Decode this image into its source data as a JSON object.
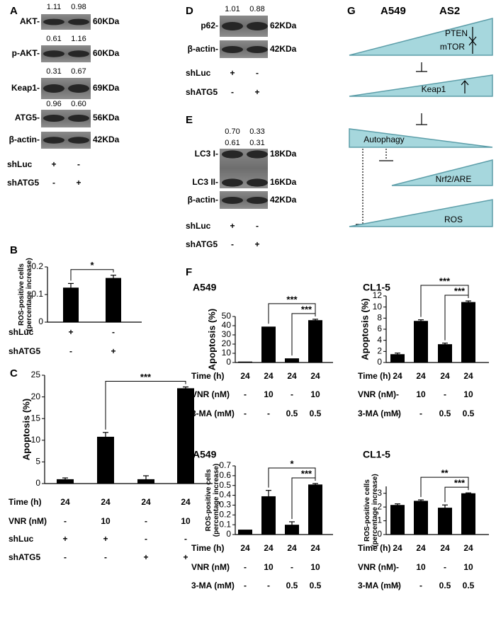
{
  "panels": {
    "A": {
      "label": "A",
      "blots": [
        {
          "bands": [
            {
              "label": "AKT-",
              "size": "60KDa"
            }
          ],
          "quant": [
            [
              "1.11",
              "0.98"
            ]
          ]
        },
        {
          "bands": [
            {
              "label": "p-AKT-",
              "size": "60KDa"
            }
          ],
          "quant": [
            [
              "0.61",
              "1.16"
            ]
          ]
        },
        {
          "bands": [
            {
              "label": "Keap1-",
              "size": "69KDa"
            }
          ],
          "quant": [
            [
              "0.31",
              "0.67"
            ]
          ]
        },
        {
          "bands": [
            {
              "label": "ATG5-",
              "size": "56KDa"
            }
          ],
          "quant": [
            [
              "0.96",
              "0.60"
            ]
          ]
        },
        {
          "bands": [
            {
              "label": "β-actin-",
              "size": "42KDa"
            }
          ]
        }
      ],
      "conditions": [
        {
          "name": "shLuc",
          "marks": [
            "+",
            "-"
          ]
        },
        {
          "name": "shATG5",
          "marks": [
            "-",
            "+"
          ]
        }
      ]
    },
    "D": {
      "label": "D",
      "blots": [
        {
          "bands": [
            {
              "label": "p62-",
              "size": "62KDa"
            }
          ],
          "quant": [
            [
              "1.01",
              "0.88"
            ]
          ]
        },
        {
          "bands": [
            {
              "label": "β-actin-",
              "size": "42KDa"
            }
          ]
        }
      ],
      "conditions": [
        {
          "name": "shLuc",
          "marks": [
            "+",
            "-"
          ]
        },
        {
          "name": "shATG5",
          "marks": [
            "-",
            "+"
          ]
        }
      ]
    },
    "E": {
      "label": "E",
      "blots": [
        {
          "bands": [
            {
              "label": "LC3 I-",
              "size": "18KDa"
            },
            {
              "label": "LC3 II-",
              "size": "16KDa"
            }
          ],
          "quant": [
            [
              "0.70",
              "0.33"
            ],
            [
              "0.61",
              "0.31"
            ]
          ]
        },
        {
          "bands": [
            {
              "label": "β-actin-",
              "size": "42KDa"
            }
          ]
        }
      ],
      "conditions": [
        {
          "name": "shLuc",
          "marks": [
            "+",
            "-"
          ]
        },
        {
          "name": "shATG5",
          "marks": [
            "-",
            "+"
          ]
        }
      ]
    },
    "F": {
      "label": "F"
    },
    "G": {
      "label": "G",
      "columns": [
        "A549",
        "AS2"
      ],
      "nodes": [
        "PTEN",
        "mTOR",
        "Keap1",
        "Autophagy",
        "Nrf2/ARE",
        "ROS"
      ]
    }
  },
  "chart_data": [
    {
      "type": "bar",
      "label": "B",
      "ylabel": [
        "ROS-positive cells",
        "(percentage increase)"
      ],
      "values": [
        0.125,
        0.16
      ],
      "errors": [
        0.015,
        0.01
      ],
      "color": "#000000",
      "ylim": [
        0,
        0.2
      ],
      "yticks": [
        0,
        0.1,
        0.2
      ],
      "significance": [
        {
          "from": 0,
          "to": 1,
          "label": "*"
        }
      ],
      "conditions": [
        {
          "name": "shLuc",
          "values": [
            "+",
            "-"
          ]
        },
        {
          "name": "shATG5",
          "values": [
            "-",
            "+"
          ]
        }
      ]
    },
    {
      "type": "bar",
      "label": "C",
      "ylabel": [
        "Apoptosis (%)"
      ],
      "values": [
        1,
        10.8,
        1,
        22
      ],
      "errors": [
        0.3,
        1,
        0.8,
        0.3
      ],
      "color": "#000000",
      "ylim": [
        0,
        25
      ],
      "yticks": [
        0,
        5,
        10,
        15,
        20,
        25
      ],
      "significance": [
        {
          "from": 1,
          "to": 3,
          "label": "***"
        }
      ],
      "conditions": [
        {
          "name": "Time (h)",
          "values": [
            "24",
            "24",
            "24",
            "24"
          ]
        },
        {
          "name": "VNR (nM)",
          "values": [
            "-",
            "10",
            "-",
            "10"
          ]
        },
        {
          "name": "shLuc",
          "values": [
            "+",
            "+",
            "-",
            "-"
          ]
        },
        {
          "name": "shATG5",
          "values": [
            "-",
            "-",
            "+",
            "+"
          ]
        }
      ]
    },
    {
      "type": "bar",
      "title": "A549",
      "ylabel": [
        "Apoptosis (%)"
      ],
      "values": [
        1,
        39,
        4.5,
        46
      ],
      "errors": [
        0,
        0,
        0,
        1
      ],
      "color": "#000000",
      "ylim": [
        0,
        50
      ],
      "yticks": [
        0,
        10,
        20,
        30,
        40,
        50
      ],
      "significance": [
        {
          "from": 1,
          "to": 3,
          "label": "***"
        },
        {
          "from": 2,
          "to": 3,
          "label": "***"
        }
      ],
      "conditions": [
        {
          "name": "Time (h)",
          "values": [
            "24",
            "24",
            "24",
            "24"
          ]
        },
        {
          "name": "VNR (nM)",
          "values": [
            "-",
            "10",
            "-",
            "10"
          ]
        },
        {
          "name": "3-MA (mM)",
          "values": [
            "-",
            "-",
            "0.5",
            "0.5"
          ]
        }
      ]
    },
    {
      "type": "bar",
      "title": "CL1-5",
      "ylabel": [
        "Apoptosis (%)"
      ],
      "values": [
        1.5,
        7.5,
        3.3,
        10.9
      ],
      "errors": [
        0.2,
        0.2,
        0.2,
        0.2
      ],
      "color": "#000000",
      "ylim": [
        0,
        12
      ],
      "yticks": [
        0,
        2,
        4,
        6,
        8,
        10,
        12
      ],
      "significance": [
        {
          "from": 1,
          "to": 3,
          "label": "***"
        },
        {
          "from": 2,
          "to": 3,
          "label": "***"
        }
      ],
      "conditions": [
        {
          "name": "Time (h)",
          "values": [
            "24",
            "24",
            "24",
            "24"
          ]
        },
        {
          "name": "VNR (nM)",
          "values": [
            "-",
            "10",
            "-",
            "10"
          ]
        },
        {
          "name": "3-MA (mM)",
          "values": [
            "-",
            "-",
            "0.5",
            "0.5"
          ]
        }
      ]
    },
    {
      "type": "bar",
      "title": "A549",
      "ylabel": [
        "ROS-positive cells",
        "(percentage increase)"
      ],
      "values": [
        0.05,
        0.39,
        0.1,
        0.51
      ],
      "errors": [
        0,
        0.06,
        0.03,
        0.01
      ],
      "color": "#000000",
      "ylim": [
        0,
        0.7
      ],
      "yticks": [
        0,
        0.1,
        0.2,
        0.3,
        0.4,
        0.5,
        0.6,
        0.7
      ],
      "significance": [
        {
          "from": 1,
          "to": 3,
          "label": "*"
        },
        {
          "from": 2,
          "to": 3,
          "label": "***"
        }
      ],
      "conditions": [
        {
          "name": "Time (h)",
          "values": [
            "24",
            "24",
            "24",
            "24"
          ]
        },
        {
          "name": "VNR (nM)",
          "values": [
            "-",
            "10",
            "-",
            "10"
          ]
        },
        {
          "name": "3-MA (mM)",
          "values": [
            "-",
            "-",
            "0.5",
            "0.5"
          ]
        }
      ]
    },
    {
      "type": "bar",
      "title": "CL1-5",
      "ylabel": [
        "ROS-positive cells",
        "(percentage increase)"
      ],
      "values": [
        2.15,
        2.45,
        1.95,
        3.0
      ],
      "errors": [
        0.08,
        0.07,
        0.2,
        0.03
      ],
      "color": "#000000",
      "ylim": [
        0,
        3.5
      ],
      "yticks": [
        0,
        1,
        2,
        3
      ],
      "significance": [
        {
          "from": 1,
          "to": 3,
          "label": "**"
        },
        {
          "from": 2,
          "to": 3,
          "label": "***"
        }
      ],
      "conditions": [
        {
          "name": "Time (h)",
          "values": [
            "24",
            "24",
            "24",
            "24"
          ]
        },
        {
          "name": "VNR (nM)",
          "values": [
            "-",
            "10",
            "-",
            "10"
          ]
        },
        {
          "name": "3-MA (mM)",
          "values": [
            "-",
            "-",
            "0.5",
            "0.5"
          ]
        }
      ]
    }
  ]
}
